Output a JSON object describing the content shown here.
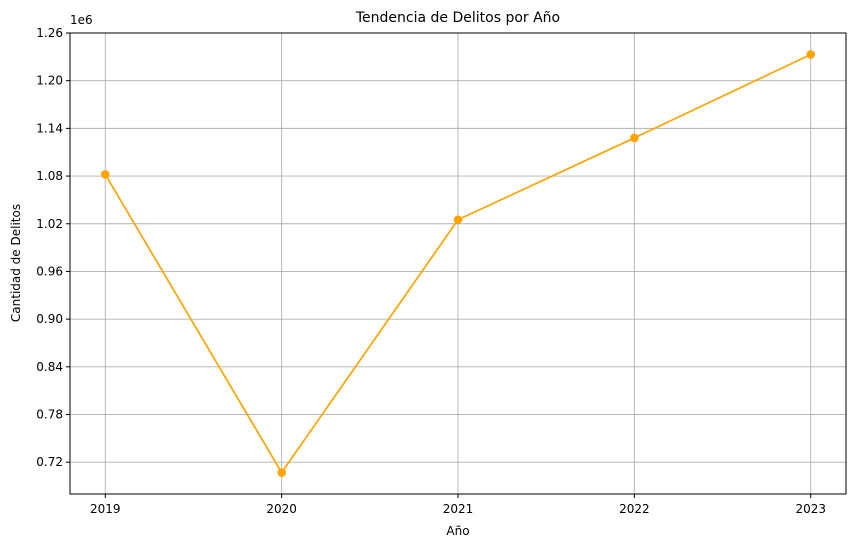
{
  "chart_data": {
    "type": "line",
    "title": "Tendencia de Delitos por Año",
    "xlabel": "Año",
    "ylabel": "Cantidad de Delitos",
    "y_scale_label": "1e6",
    "categories": [
      "2019",
      "2020",
      "2021",
      "2022",
      "2023"
    ],
    "x": [
      2019,
      2020,
      2021,
      2022,
      2023
    ],
    "series": [
      {
        "values": [
          1082000,
          707000,
          1025000,
          1128000,
          1233000
        ],
        "color": "#FFA500",
        "marker": "circle"
      }
    ],
    "xlim": [
      2018.8,
      2023.2
    ],
    "ylim": [
      0.68,
      1.26
    ],
    "yticks": [
      0.72,
      0.78,
      0.84,
      0.9,
      0.96,
      1.02,
      1.08,
      1.14,
      1.2,
      1.26
    ],
    "ytick_labels": [
      "0.72",
      "0.78",
      "0.84",
      "0.90",
      "0.96",
      "1.02",
      "1.08",
      "1.14",
      "1.20",
      "1.26"
    ],
    "grid": true
  }
}
